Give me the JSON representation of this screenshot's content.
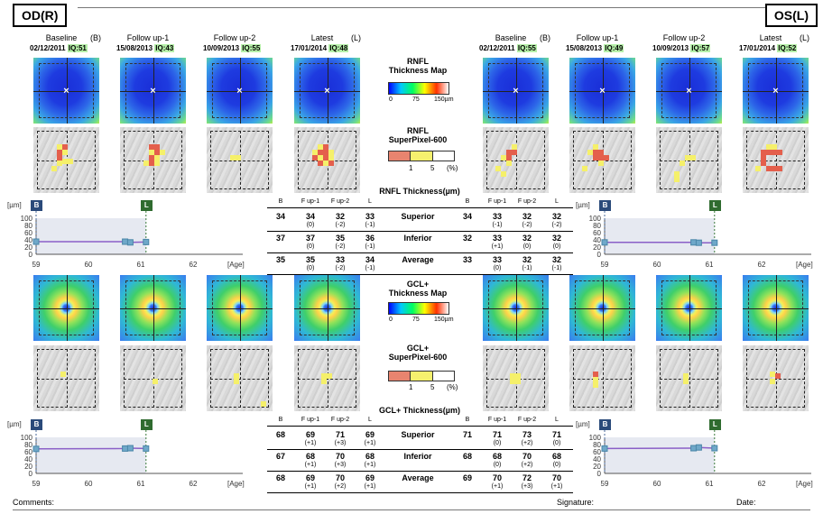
{
  "od_label": "OD(R)",
  "os_label": "OS(L)",
  "visits": [
    {
      "name": "Baseline",
      "tag": "(B)",
      "date": "02/12/2011",
      "iq": "IQ:51"
    },
    {
      "name": "Follow up-1",
      "tag": "",
      "date": "15/08/2013",
      "iq": "IQ:43"
    },
    {
      "name": "Follow up-2",
      "tag": "",
      "date": "10/09/2013",
      "iq": "IQ:55"
    },
    {
      "name": "Latest",
      "tag": "(L)",
      "date": "17/01/2014",
      "iq": "IQ:48"
    },
    {
      "name": "Baseline",
      "tag": "(B)",
      "date": "02/12/2011",
      "iq": "IQ:55"
    },
    {
      "name": "Follow up-1",
      "tag": "",
      "date": "15/08/2013",
      "iq": "IQ:49"
    },
    {
      "name": "Follow up-2",
      "tag": "",
      "date": "10/09/2013",
      "iq": "IQ:57"
    },
    {
      "name": "Latest",
      "tag": "(L)",
      "date": "17/01/2014",
      "iq": "IQ:52"
    }
  ],
  "rnfl_map_title": "RNFL\nThickness Map",
  "rnfl_map_title_1": "RNFL",
  "rnfl_map_title_2": "Thickness Map",
  "rnfl_sp_title_1": "RNFL",
  "rnfl_sp_title_2": "SuperPixel-600",
  "gcl_map_title_1": "GCL+",
  "gcl_map_title_2": "Thickness Map",
  "gcl_sp_title_1": "GCL+",
  "gcl_sp_title_2": "SuperPixel-600",
  "scale": {
    "min": "0",
    "mid": "75",
    "max": "150µm"
  },
  "sp_scale": {
    "a": "1",
    "b": "5",
    "unit": "(%)"
  },
  "rnfl_table_title": "RNFL Thickness(µm)",
  "gcl_table_title": "GCL+ Thickness(µm)",
  "col_headers": [
    "B",
    "F up-1",
    "F up-2",
    "L"
  ],
  "rnfl_rows": [
    {
      "name": "Superior",
      "od": [
        "34",
        "34",
        "32",
        "33"
      ],
      "od_d": [
        "(0)",
        "(-2)",
        "(-1)"
      ],
      "os": [
        "34",
        "33",
        "32",
        "32"
      ],
      "os_d": [
        "(-1)",
        "(-2)",
        "(-2)"
      ]
    },
    {
      "name": "Inferior",
      "od": [
        "37",
        "37",
        "35",
        "36"
      ],
      "od_d": [
        "(0)",
        "(-2)",
        "(-1)"
      ],
      "os": [
        "32",
        "33",
        "32",
        "32"
      ],
      "os_d": [
        "(+1)",
        "(0)",
        "(0)"
      ]
    },
    {
      "name": "Average",
      "od": [
        "35",
        "35",
        "33",
        "34"
      ],
      "od_d": [
        "(0)",
        "(-2)",
        "(-1)"
      ],
      "os": [
        "33",
        "33",
        "32",
        "32"
      ],
      "os_d": [
        "(0)",
        "(-1)",
        "(-1)"
      ]
    }
  ],
  "gcl_rows": [
    {
      "name": "Superior",
      "od": [
        "68",
        "69",
        "71",
        "69"
      ],
      "od_d": [
        "(+1)",
        "(+3)",
        "(+1)"
      ],
      "os": [
        "71",
        "71",
        "73",
        "71"
      ],
      "os_d": [
        "(0)",
        "(+2)",
        "(0)"
      ]
    },
    {
      "name": "Inferior",
      "od": [
        "67",
        "68",
        "70",
        "68"
      ],
      "od_d": [
        "(+1)",
        "(+3)",
        "(+1)"
      ],
      "os": [
        "68",
        "68",
        "70",
        "68"
      ],
      "os_d": [
        "(0)",
        "(+2)",
        "(0)"
      ]
    },
    {
      "name": "Average",
      "od": [
        "68",
        "69",
        "70",
        "69"
      ],
      "od_d": [
        "(+1)",
        "(+2)",
        "(+1)"
      ],
      "os": [
        "69",
        "70",
        "72",
        "70"
      ],
      "os_d": [
        "(+1)",
        "(+3)",
        "(+1)"
      ]
    }
  ],
  "plot_labels": {
    "unit": "[µm]",
    "age": "[Age]",
    "badge_b": "B",
    "badge_l": "L"
  },
  "chart_data": [
    {
      "type": "line",
      "title": "",
      "ylabel": "[µm]",
      "xlabel": "[Age]",
      "x_ticks": [
        "59",
        "60",
        "61",
        "62"
      ],
      "y_ticks": [
        "0",
        "20",
        "40",
        "60",
        "80",
        "100"
      ],
      "xlim": [
        59,
        62
      ],
      "ylim": [
        0,
        100
      ],
      "series": [
        {
          "x": [
            59,
            60.7,
            60.8,
            61.1
          ],
          "y": [
            35,
            35,
            33,
            34
          ]
        }
      ]
    },
    {
      "type": "line",
      "title": "",
      "ylabel": "[µm]",
      "xlabel": "[Age]",
      "x_ticks": [
        "59",
        "60",
        "61",
        "62"
      ],
      "y_ticks": [
        "0",
        "20",
        "40",
        "60",
        "80",
        "100"
      ],
      "xlim": [
        59,
        62
      ],
      "ylim": [
        0,
        100
      ],
      "series": [
        {
          "x": [
            59,
            60.7,
            60.8,
            61.1
          ],
          "y": [
            33,
            33,
            32,
            32
          ]
        }
      ]
    },
    {
      "type": "line",
      "title": "",
      "ylabel": "[µm]",
      "xlabel": "[Age]",
      "x_ticks": [
        "59",
        "60",
        "61",
        "62"
      ],
      "y_ticks": [
        "0",
        "20",
        "40",
        "60",
        "80",
        "100"
      ],
      "xlim": [
        59,
        62
      ],
      "ylim": [
        0,
        100
      ],
      "series": [
        {
          "x": [
            59,
            60.7,
            60.8,
            61.1
          ],
          "y": [
            68,
            69,
            70,
            69
          ]
        }
      ]
    },
    {
      "type": "line",
      "title": "",
      "ylabel": "[µm]",
      "xlabel": "[Age]",
      "x_ticks": [
        "59",
        "60",
        "61",
        "62"
      ],
      "y_ticks": [
        "0",
        "20",
        "40",
        "60",
        "80",
        "100"
      ],
      "xlim": [
        59,
        62
      ],
      "ylim": [
        0,
        100
      ],
      "series": [
        {
          "x": [
            59,
            60.7,
            60.8,
            61.1
          ],
          "y": [
            69,
            70,
            72,
            70
          ]
        }
      ]
    }
  ],
  "footer": {
    "comments": "Comments:",
    "signature": "Signature:",
    "date": "Date:"
  }
}
